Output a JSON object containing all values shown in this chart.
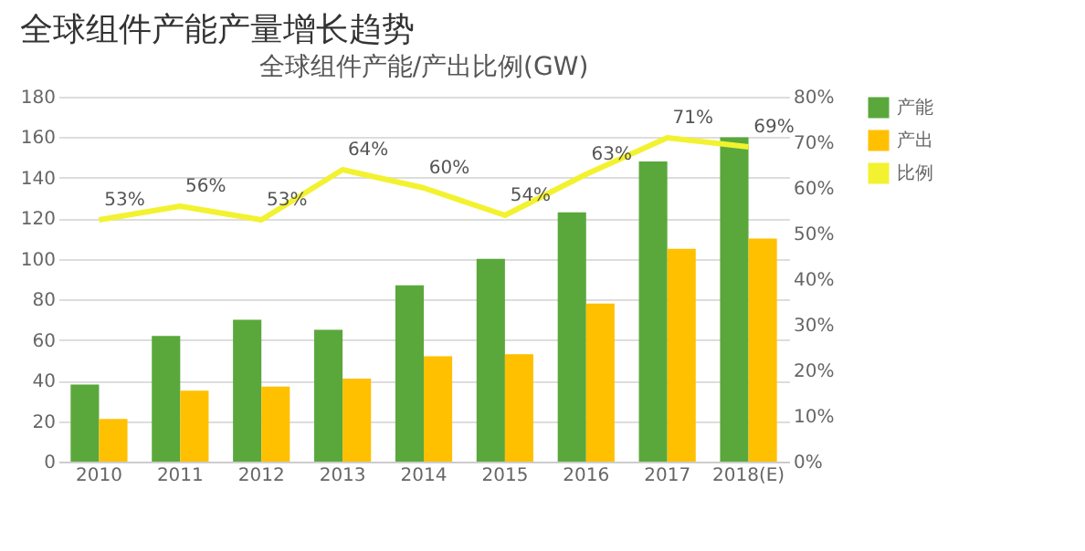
{
  "chart_data": {
    "type": "bar",
    "title": "全球组件产能产量增长趋势",
    "subtitle": "全球组件产能/产出比例(GW)",
    "categories": [
      "2010",
      "2011",
      "2012",
      "2013",
      "2014",
      "2015",
      "2016",
      "2017",
      "2018(E)"
    ],
    "series": [
      {
        "name": "产能",
        "color": "#5aa83c",
        "values": [
          38,
          62,
          70,
          65,
          87,
          100,
          123,
          148,
          160
        ]
      },
      {
        "name": "产出",
        "color": "#ffc000",
        "values": [
          21,
          35,
          37,
          41,
          52,
          53,
          78,
          105,
          110
        ]
      },
      {
        "name": "比例",
        "type": "line",
        "axis": "y2",
        "color": "#f2f230",
        "values": [
          53,
          56,
          53,
          64,
          60,
          54,
          63,
          71,
          69
        ],
        "value_labels": [
          "53%",
          "56%",
          "53%",
          "64%",
          "60%",
          "54%",
          "63%",
          "71%",
          "69%"
        ]
      }
    ],
    "ylim": [
      0,
      180
    ],
    "yticks": [
      0,
      20,
      40,
      60,
      80,
      100,
      120,
      140,
      160,
      180
    ],
    "y2lim": [
      0,
      80
    ],
    "y2ticks": [
      {
        "value": 0,
        "label": "0%"
      },
      {
        "value": 10,
        "label": "10%"
      },
      {
        "value": 20,
        "label": "20%"
      },
      {
        "value": 30,
        "label": "30%"
      },
      {
        "value": 40,
        "label": "40%"
      },
      {
        "value": 50,
        "label": "50%"
      },
      {
        "value": 60,
        "label": "60%"
      },
      {
        "value": 70,
        "label": "70%"
      },
      {
        "value": 80,
        "label": "80%"
      }
    ],
    "grid": "y",
    "legend": "right"
  }
}
